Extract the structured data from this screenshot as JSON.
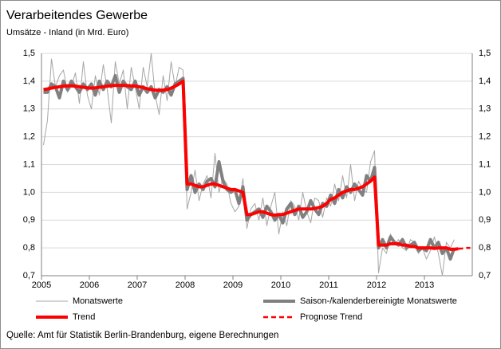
{
  "chart_data": {
    "type": "line",
    "title": "Verarbeitendes Gewerbe",
    "subtitle": "Umsätze - Inland (in Mrd. Euro)",
    "source": "Quelle: Amt für Statistik Berlin-Brandenburg, eigene Berechnungen",
    "categories": [
      "2005",
      null,
      null,
      null,
      null,
      null,
      null,
      null,
      null,
      null,
      null,
      null,
      "2006",
      null,
      null,
      null,
      null,
      null,
      null,
      null,
      null,
      null,
      null,
      null,
      "2007",
      null,
      null,
      null,
      null,
      null,
      null,
      null,
      null,
      null,
      null,
      null,
      "2008",
      null,
      null,
      null,
      null,
      null,
      null,
      null,
      null,
      null,
      null,
      null,
      "2009",
      null,
      null,
      null,
      null,
      null,
      null,
      null,
      null,
      null,
      null,
      null,
      "2010",
      null,
      null,
      null,
      null,
      null,
      null,
      null,
      null,
      null,
      null,
      null,
      "2011",
      null,
      null,
      null,
      null,
      null,
      null,
      null,
      null,
      null,
      null,
      null,
      "2012",
      null,
      null,
      null,
      null,
      null,
      null,
      null,
      null,
      null,
      null,
      null,
      "2013",
      null,
      null,
      null,
      null,
      null,
      null,
      null,
      null,
      null,
      null,
      null
    ],
    "ylim": [
      0.7,
      1.5
    ],
    "yticks": [
      {
        "value": 0.7,
        "label": "0,7"
      },
      {
        "value": 0.8,
        "label": "0,8"
      },
      {
        "value": 0.9,
        "label": "0,9"
      },
      {
        "value": 1.0,
        "label": "1,0"
      },
      {
        "value": 1.1,
        "label": "1,1"
      },
      {
        "value": 1.2,
        "label": "1,2"
      },
      {
        "value": 1.3,
        "label": "1,3"
      },
      {
        "value": 1.4,
        "label": "1,4"
      },
      {
        "value": 1.5,
        "label": "1,5"
      }
    ],
    "grid": true,
    "series": [
      {
        "name": "Monatswerte",
        "color": "#a6a6a6",
        "width": 1,
        "values": [
          1.17,
          1.26,
          1.48,
          1.38,
          1.42,
          1.44,
          1.36,
          1.38,
          1.43,
          1.32,
          1.47,
          1.35,
          1.3,
          1.42,
          1.35,
          1.46,
          1.37,
          1.25,
          1.47,
          1.39,
          1.44,
          1.3,
          1.45,
          1.38,
          1.3,
          1.45,
          1.38,
          1.5,
          1.35,
          1.28,
          1.42,
          1.33,
          1.47,
          1.38,
          1.45,
          1.44,
          0.94,
          1.0,
          1.08,
          0.97,
          1.03,
          1.06,
          0.98,
          1.14,
          1.0,
          1.05,
          1.03,
          0.96,
          0.93,
          0.95,
          1.05,
          0.87,
          0.94,
          0.96,
          0.9,
          0.98,
          0.88,
          0.95,
          1.0,
          0.85,
          0.93,
          0.88,
          0.97,
          0.95,
          0.9,
          1.0,
          0.93,
          0.89,
          0.98,
          0.97,
          0.91,
          0.98,
          0.95,
          1.03,
          0.97,
          1.06,
          0.98,
          1.1,
          0.97,
          1.04,
          1.01,
          1.0,
          1.11,
          1.15,
          0.71,
          0.8,
          0.78,
          0.85,
          0.81,
          0.83,
          0.8,
          0.79,
          0.83,
          0.82,
          0.78,
          0.8,
          0.76,
          0.79,
          0.84,
          0.78,
          0.7,
          0.82,
          0.8,
          0.83,
          null,
          null,
          null,
          null
        ]
      },
      {
        "name": "Saison-/kalenderbereinigte Monatswerte",
        "color": "#808080",
        "width": 4,
        "values": [
          1.36,
          1.36,
          1.39,
          1.38,
          1.34,
          1.4,
          1.37,
          1.4,
          1.38,
          1.36,
          1.39,
          1.37,
          1.39,
          1.35,
          1.4,
          1.37,
          1.4,
          1.38,
          1.42,
          1.36,
          1.4,
          1.38,
          1.37,
          1.4,
          1.35,
          1.38,
          1.36,
          1.38,
          1.34,
          1.37,
          1.36,
          1.38,
          1.35,
          1.39,
          1.4,
          1.41,
          1.01,
          1.06,
          1.0,
          1.03,
          1.01,
          1.04,
          1.05,
          1.02,
          1.11,
          1.04,
          1.01,
          1.0,
          1.01,
          0.96,
          1.02,
          0.9,
          0.92,
          0.93,
          0.94,
          0.91,
          0.95,
          0.93,
          0.9,
          0.92,
          0.89,
          0.94,
          0.96,
          0.92,
          0.95,
          0.91,
          0.93,
          0.97,
          0.94,
          0.92,
          0.96,
          0.95,
          0.99,
          0.96,
          1.01,
          0.98,
          1.02,
          1.0,
          1.03,
          1.01,
          0.99,
          1.06,
          1.04,
          1.09,
          0.8,
          0.83,
          0.8,
          0.84,
          0.82,
          0.81,
          0.83,
          0.8,
          0.81,
          0.82,
          0.79,
          0.8,
          0.79,
          0.83,
          0.8,
          0.82,
          0.78,
          0.8,
          0.76,
          0.8,
          null,
          null,
          null,
          null
        ]
      },
      {
        "name": "Trend",
        "color": "#ff0000",
        "width": 4,
        "values": [
          1.37,
          1.372,
          1.375,
          1.378,
          1.38,
          1.382,
          1.383,
          1.383,
          1.382,
          1.38,
          1.378,
          1.376,
          1.375,
          1.376,
          1.378,
          1.38,
          1.382,
          1.384,
          1.385,
          1.385,
          1.385,
          1.384,
          1.383,
          1.382,
          1.38,
          1.377,
          1.373,
          1.37,
          1.368,
          1.367,
          1.368,
          1.37,
          1.375,
          1.382,
          1.39,
          1.4,
          1.03,
          1.03,
          1.025,
          1.02,
          1.02,
          1.025,
          1.03,
          1.03,
          1.025,
          1.02,
          1.015,
          1.01,
          1.01,
          1.005,
          1.0,
          0.92,
          0.92,
          0.925,
          0.93,
          0.93,
          0.925,
          0.92,
          0.918,
          0.92,
          0.92,
          0.925,
          0.93,
          0.935,
          0.94,
          0.94,
          0.94,
          0.94,
          0.942,
          0.945,
          0.95,
          0.96,
          0.975,
          0.98,
          0.99,
          1.0,
          1.005,
          1.01,
          1.01,
          1.015,
          1.02,
          1.03,
          1.04,
          1.055,
          0.81,
          0.81,
          0.81,
          0.815,
          0.815,
          0.815,
          0.81,
          0.81,
          0.805,
          0.805,
          0.8,
          0.8,
          0.8,
          0.8,
          0.798,
          0.8,
          0.8,
          0.8,
          0.795,
          0.795,
          0.797,
          null,
          null,
          null
        ]
      },
      {
        "name": "Prognose Trend",
        "color": "#ff0000",
        "width": 2.5,
        "dashed": true,
        "values": [
          null,
          null,
          null,
          null,
          null,
          null,
          null,
          null,
          null,
          null,
          null,
          null,
          null,
          null,
          null,
          null,
          null,
          null,
          null,
          null,
          null,
          null,
          null,
          null,
          null,
          null,
          null,
          null,
          null,
          null,
          null,
          null,
          null,
          null,
          null,
          null,
          null,
          null,
          null,
          null,
          null,
          null,
          null,
          null,
          null,
          null,
          null,
          null,
          null,
          null,
          null,
          null,
          null,
          null,
          null,
          null,
          null,
          null,
          null,
          null,
          null,
          null,
          null,
          null,
          null,
          null,
          null,
          null,
          null,
          null,
          null,
          null,
          null,
          null,
          null,
          null,
          null,
          null,
          null,
          null,
          null,
          null,
          null,
          null,
          null,
          null,
          null,
          null,
          null,
          null,
          null,
          null,
          null,
          null,
          null,
          null,
          null,
          null,
          null,
          null,
          null,
          null,
          null,
          null,
          0.797,
          0.798,
          0.8,
          0.8
        ]
      }
    ]
  }
}
